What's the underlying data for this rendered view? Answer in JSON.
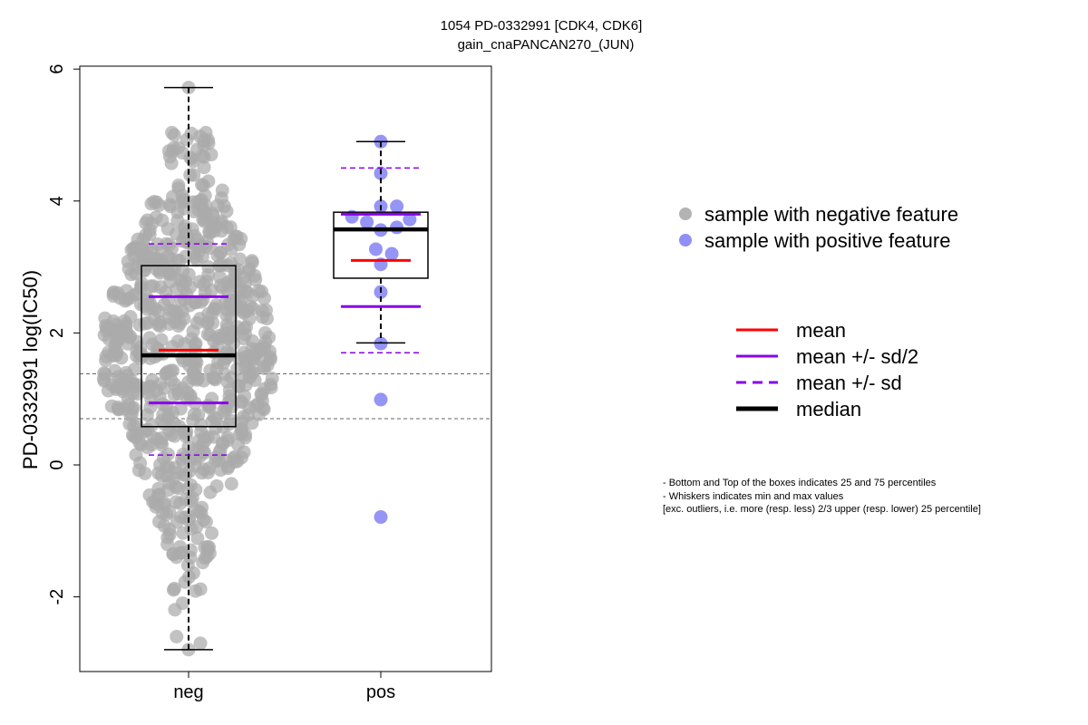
{
  "chart_data": {
    "type": "box",
    "title_lines": [
      "1054 PD-0332991 [CDK4, CDK6]",
      "gain_cnaPANCAN270_(JUN)"
    ],
    "xlabel": "",
    "ylabel": "PD-0332991 log(IC50)",
    "ylim": [
      -3.1,
      6.1
    ],
    "y_ticks": [
      -2,
      0,
      2,
      4,
      6
    ],
    "categories": [
      "neg",
      "pos"
    ],
    "reference_lines": [
      0.7,
      1.38
    ],
    "groups": [
      {
        "name": "neg",
        "color": "#aaaaaa",
        "min": -2.8,
        "q1": 0.58,
        "median": 1.66,
        "q3": 3.02,
        "max": 5.72,
        "mean": 1.74,
        "mean_minus_half_sd": 0.94,
        "mean_plus_half_sd": 2.55,
        "mean_minus_sd": 0.15,
        "mean_plus_sd": 3.35,
        "n_points": 760
      },
      {
        "name": "pos",
        "color": "#8f8ff5",
        "min": 1.85,
        "q1": 2.83,
        "median": 3.57,
        "q3": 3.83,
        "max": 4.9,
        "mean": 3.1,
        "mean_minus_half_sd": 2.4,
        "mean_plus_half_sd": 3.8,
        "mean_minus_sd": 1.7,
        "mean_plus_sd": 4.5,
        "points": [
          {
            "x": 0.0,
            "y": 4.9
          },
          {
            "x": 0.0,
            "y": 4.42
          },
          {
            "x": 0.0,
            "y": 3.92
          },
          {
            "x": 0.16,
            "y": 3.92
          },
          {
            "x": -0.29,
            "y": 3.76
          },
          {
            "x": -0.14,
            "y": 3.68
          },
          {
            "x": 0.29,
            "y": 3.72
          },
          {
            "x": 0.0,
            "y": 3.56
          },
          {
            "x": 0.16,
            "y": 3.6
          },
          {
            "x": -0.05,
            "y": 3.27
          },
          {
            "x": 0.11,
            "y": 3.2
          },
          {
            "x": 0.0,
            "y": 3.04
          },
          {
            "x": 0.0,
            "y": 2.62
          },
          {
            "x": 0.0,
            "y": 1.84
          },
          {
            "x": 0.0,
            "y": 0.99
          },
          {
            "x": 0.0,
            "y": -0.79
          }
        ]
      }
    ],
    "legend_points": [
      {
        "label": "sample with negative feature",
        "color": "#b3b3b3"
      },
      {
        "label": "sample with positive feature",
        "color": "#8f8ff5"
      }
    ],
    "legend_lines": [
      {
        "label": "mean",
        "color": "#ff0000",
        "style": "solid"
      },
      {
        "label": "mean +/- sd/2",
        "color": "#8b00ee",
        "style": "solid"
      },
      {
        "label": "mean +/- sd",
        "color": "#8b00ee",
        "style": "dashed"
      },
      {
        "label": "median",
        "color": "#000000",
        "style": "thick"
      }
    ],
    "notes": [
      "- Bottom and Top of the boxes indicates 25 and 75 percentiles",
      "- Whiskers indicates min and max values",
      "[exc. outliers, i.e. more (resp. less) 2/3 upper (resp. lower) 25 percentile]"
    ]
  }
}
